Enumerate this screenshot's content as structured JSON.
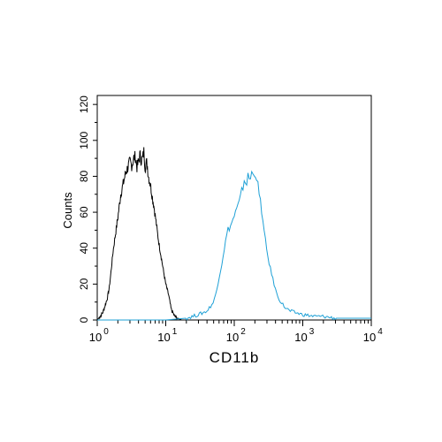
{
  "chart_data": {
    "type": "line",
    "xlabel": "CD11b",
    "ylabel": "Counts",
    "x_scale": "log",
    "xlim": [
      1,
      10000
    ],
    "ylim": [
      0,
      125
    ],
    "x_ticks": [
      {
        "value": 1,
        "base": "10",
        "exp": "0"
      },
      {
        "value": 10,
        "base": "10",
        "exp": "1"
      },
      {
        "value": 100,
        "base": "10",
        "exp": "2"
      },
      {
        "value": 1000,
        "base": "10",
        "exp": "3"
      },
      {
        "value": 10000,
        "base": "10",
        "exp": "4"
      }
    ],
    "y_ticks": [
      "0",
      "20",
      "40",
      "60",
      "80",
      "100",
      "120"
    ],
    "grid": false,
    "series": [
      {
        "color": "#000000",
        "x": [
          1.0,
          1.1,
          1.2,
          1.3,
          1.4,
          1.5,
          1.6,
          1.7,
          1.8,
          2.0,
          2.2,
          2.4,
          2.6,
          2.8,
          3.0,
          3.2,
          3.4,
          3.6,
          3.8,
          4.0,
          4.2,
          4.4,
          4.6,
          4.8,
          5.0,
          5.3,
          5.6,
          6.0,
          6.4,
          6.8,
          7.2,
          7.6,
          8.0,
          8.6,
          9.2,
          10.0,
          11.0,
          12.0,
          13.5,
          15.0,
          17.0,
          20.0
        ],
        "y": [
          0,
          2,
          4,
          8,
          12,
          18,
          28,
          38,
          45,
          57,
          70,
          76,
          82,
          85,
          88,
          86,
          90,
          91,
          85,
          88,
          92,
          89,
          90,
          94,
          85,
          88,
          80,
          75,
          68,
          62,
          55,
          48,
          42,
          35,
          28,
          20,
          14,
          6,
          2,
          1,
          0,
          0
        ]
      },
      {
        "color": "#1ea0d6",
        "x": [
          1.0,
          5.0,
          10.0,
          20.0,
          30.0,
          40.0,
          50.0,
          55.0,
          60.0,
          65.0,
          70.0,
          75.0,
          80.0,
          90.0,
          100.0,
          110.0,
          120.0,
          130.0,
          140.0,
          150.0,
          160.0,
          170.0,
          180.0,
          190.0,
          200.0,
          215.0,
          230.0,
          250.0,
          270.0,
          300.0,
          330.0,
          370.0,
          420.0,
          480.0,
          550.0,
          650.0,
          800.0,
          1000.0,
          1500.0,
          2000.0,
          3000.0,
          5000.0,
          10000.0
        ],
        "y": [
          0,
          0,
          0,
          1,
          3,
          5,
          10,
          16,
          24,
          30,
          38,
          44,
          50,
          53,
          58,
          62,
          66,
          72,
          78,
          76,
          80,
          78,
          82,
          80,
          84,
          78,
          70,
          62,
          50,
          38,
          30,
          22,
          14,
          10,
          7,
          5,
          4,
          3,
          2,
          2,
          1,
          1,
          1
        ]
      }
    ]
  }
}
